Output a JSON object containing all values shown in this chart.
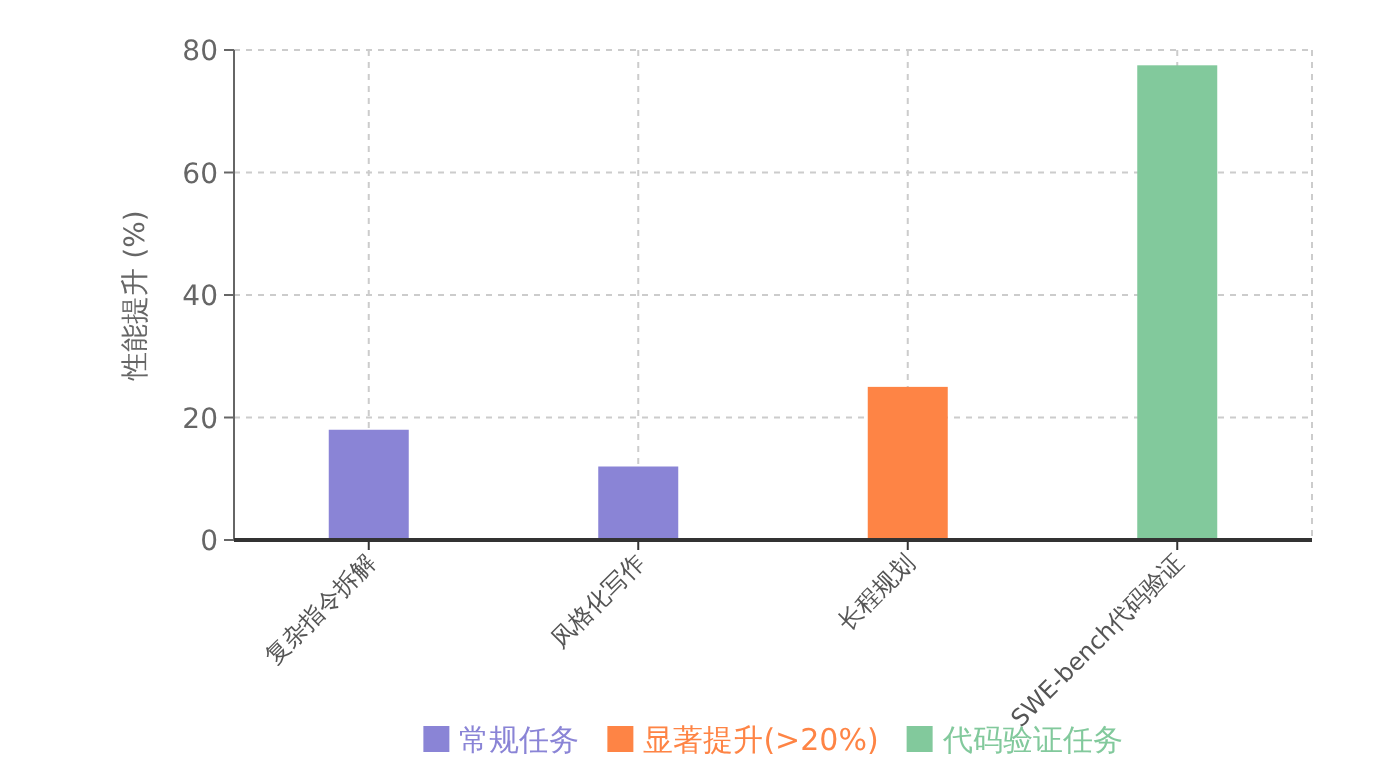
{
  "chart_data": {
    "type": "bar",
    "ylabel": "性能提升 (%)",
    "categories": [
      "复杂指令拆解",
      "风格化写作",
      "长程规划",
      "SWE-bench代码验证"
    ],
    "series": [
      {
        "name": "常规任务",
        "color": "#8a84d6",
        "values": [
          18,
          12,
          null,
          null
        ]
      },
      {
        "name": "显著提升(>20%)",
        "color": "#fe8445",
        "values": [
          null,
          null,
          25,
          null
        ]
      },
      {
        "name": "代码验证任务",
        "color": "#82c99c",
        "values": [
          null,
          null,
          null,
          77.5
        ]
      }
    ],
    "ylim": [
      0,
      80
    ],
    "yticks": [
      0,
      20,
      40,
      60,
      80
    ],
    "grid": true,
    "legend": "bottom"
  }
}
